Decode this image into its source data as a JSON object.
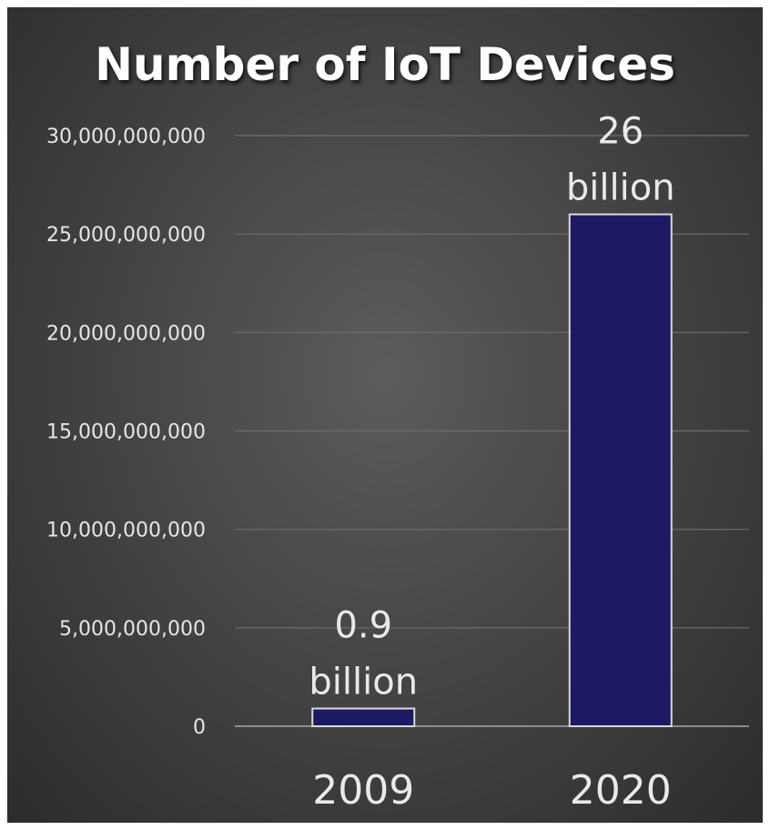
{
  "chart_data": {
    "type": "bar",
    "title": "Number of IoT Devices",
    "xlabel": "",
    "ylabel": "",
    "categories": [
      "2009",
      "2020"
    ],
    "values": [
      900000000,
      26000000000
    ],
    "data_labels": [
      [
        "0.9",
        "billion"
      ],
      [
        "26",
        "billion"
      ]
    ],
    "yticks": [
      "0",
      "5,000,000,000",
      "10,000,000,000",
      "15,000,000,000",
      "20,000,000,000",
      "25,000,000,000",
      "30,000,000,000"
    ],
    "ylim": [
      0,
      30000000000
    ],
    "grid": true,
    "legend": "none"
  },
  "colors": {
    "bar_fill": "#1d1a63",
    "bar_stroke": "#d9d9d9",
    "gridline": "#6e6e6e"
  }
}
